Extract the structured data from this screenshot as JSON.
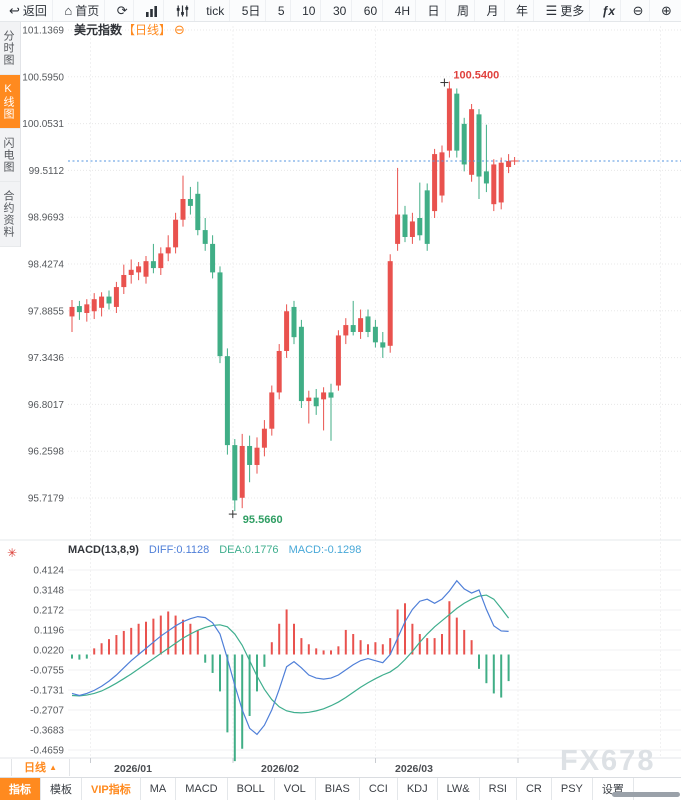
{
  "top_toolbar": [
    {
      "name": "back",
      "icon": "back",
      "label": "返回"
    },
    {
      "name": "home",
      "icon": "home",
      "label": "首页"
    },
    {
      "name": "refresh",
      "icon": "refresh",
      "label": ""
    },
    {
      "name": "chart-type",
      "icon": "bar-chart",
      "label": ""
    },
    {
      "name": "kline-style",
      "icon": "sliders",
      "label": ""
    },
    {
      "name": "period-tick",
      "label": "tick"
    },
    {
      "name": "period-5d",
      "label": "5日"
    },
    {
      "name": "period-5",
      "label": "5"
    },
    {
      "name": "period-10",
      "label": "10"
    },
    {
      "name": "period-30",
      "label": "30"
    },
    {
      "name": "period-60",
      "label": "60"
    },
    {
      "name": "period-4h",
      "label": "4H"
    },
    {
      "name": "period-day",
      "label": "日"
    },
    {
      "name": "period-week",
      "label": "周"
    },
    {
      "name": "period-month",
      "label": "月"
    },
    {
      "name": "period-year",
      "label": "年"
    },
    {
      "name": "more",
      "icon": "more",
      "label": "更多"
    },
    {
      "name": "formula",
      "label": "ƒx"
    },
    {
      "name": "zoom-out",
      "icon": "zoom-out",
      "label": ""
    },
    {
      "name": "zoom-in",
      "icon": "zoom-in",
      "label": ""
    }
  ],
  "sidebar": [
    {
      "name": "time-chart",
      "label": "分时图",
      "active": false
    },
    {
      "name": "kline-chart",
      "label": "K线图",
      "active": true
    },
    {
      "name": "lightning-chart",
      "label": "闪电图",
      "active": false
    },
    {
      "name": "contract-info",
      "label": "合约资料",
      "active": false
    }
  ],
  "title": {
    "symbol": "美元指数",
    "period": "【日线】",
    "collapse_icon": "⊖"
  },
  "macd_header": {
    "title": "MACD(13,8,9)",
    "diff": "DIFF:0.1128",
    "dea": "DEA:0.1776",
    "macd": "MACD:-0.1298"
  },
  "bottom_axis": {
    "period_label": "日线",
    "arrow": "▲"
  },
  "bottom_toolbar": [
    {
      "name": "indicator",
      "label": "指标",
      "style": "active"
    },
    {
      "name": "template",
      "label": "模板",
      "style": ""
    },
    {
      "name": "vip-indicator",
      "label": "VIP指标",
      "style": "vip"
    },
    {
      "name": "ma",
      "label": "MA",
      "style": ""
    },
    {
      "name": "macd",
      "label": "MACD",
      "style": ""
    },
    {
      "name": "boll",
      "label": "BOLL",
      "style": ""
    },
    {
      "name": "vol",
      "label": "VOL",
      "style": ""
    },
    {
      "name": "bias",
      "label": "BIAS",
      "style": ""
    },
    {
      "name": "cci",
      "label": "CCI",
      "style": ""
    },
    {
      "name": "kdj",
      "label": "KDJ",
      "style": ""
    },
    {
      "name": "lwr",
      "label": "LW&",
      "style": ""
    },
    {
      "name": "rsi",
      "label": "RSI",
      "style": ""
    },
    {
      "name": "cr",
      "label": "CR",
      "style": ""
    },
    {
      "name": "psy",
      "label": "PSY",
      "style": ""
    },
    {
      "name": "settings",
      "label": "设置",
      "style": ""
    }
  ],
  "watermark": "FX678",
  "chart_data": {
    "type": "candlestick",
    "title": "美元指数 日线",
    "y_axis": [
      "101.1369",
      "100.5950",
      "100.0531",
      "99.5112",
      "98.9693",
      "98.4274",
      "97.8855",
      "97.3436",
      "96.8017",
      "96.2598",
      "95.7179"
    ],
    "x_axis": [
      "2026/01",
      "2026/02",
      "2026/03"
    ],
    "current_price": 99.62,
    "high_marker": {
      "label": "100.5400",
      "value": 100.54
    },
    "low_marker": {
      "label": "95.5660",
      "value": 95.566
    },
    "colors": {
      "up": "#e9524e",
      "down": "#40ae86",
      "price_line": "#5596e0",
      "diff": "#4f7fd8",
      "dea": "#3fae8e"
    },
    "candles": [
      [
        97.82,
        98.01,
        97.64,
        97.93
      ],
      [
        97.94,
        98.0,
        97.78,
        97.87
      ],
      [
        97.86,
        98.02,
        97.76,
        97.96
      ],
      [
        97.88,
        98.09,
        97.79,
        98.02
      ],
      [
        97.92,
        98.1,
        97.82,
        98.05
      ],
      [
        98.05,
        98.12,
        97.9,
        97.97
      ],
      [
        97.93,
        98.22,
        97.86,
        98.16
      ],
      [
        98.16,
        98.42,
        98.08,
        98.3
      ],
      [
        98.3,
        98.48,
        98.2,
        98.36
      ],
      [
        98.33,
        98.45,
        98.24,
        98.4
      ],
      [
        98.28,
        98.52,
        98.2,
        98.46
      ],
      [
        98.46,
        98.66,
        98.32,
        98.38
      ],
      [
        98.38,
        98.62,
        98.3,
        98.55
      ],
      [
        98.55,
        98.76,
        98.46,
        98.62
      ],
      [
        98.62,
        99.02,
        98.55,
        98.94
      ],
      [
        98.94,
        99.45,
        98.86,
        99.18
      ],
      [
        99.18,
        99.32,
        99.0,
        99.1
      ],
      [
        99.24,
        99.38,
        98.76,
        98.82
      ],
      [
        98.82,
        98.96,
        98.58,
        98.66
      ],
      [
        98.66,
        98.76,
        98.26,
        98.33
      ],
      [
        98.33,
        98.4,
        97.28,
        97.36
      ],
      [
        97.36,
        97.45,
        96.22,
        96.33
      ],
      [
        96.33,
        96.4,
        95.566,
        95.69
      ],
      [
        95.72,
        96.46,
        95.6,
        96.32
      ],
      [
        96.32,
        96.44,
        95.9,
        96.1
      ],
      [
        96.1,
        96.42,
        96.0,
        96.3
      ],
      [
        96.3,
        96.62,
        96.2,
        96.52
      ],
      [
        96.52,
        97.02,
        96.44,
        96.94
      ],
      [
        96.94,
        97.5,
        96.86,
        97.42
      ],
      [
        97.42,
        97.96,
        97.34,
        97.88
      ],
      [
        97.93,
        98.0,
        97.5,
        97.58
      ],
      [
        97.7,
        97.78,
        96.76,
        96.84
      ],
      [
        96.84,
        96.96,
        96.58,
        96.88
      ],
      [
        96.88,
        96.98,
        96.68,
        96.78
      ],
      [
        96.86,
        97.0,
        96.5,
        96.94
      ],
      [
        96.94,
        97.04,
        96.38,
        96.88
      ],
      [
        97.02,
        97.66,
        96.96,
        97.6
      ],
      [
        97.6,
        97.8,
        97.5,
        97.72
      ],
      [
        97.72,
        98.0,
        97.6,
        97.64
      ],
      [
        97.64,
        97.9,
        97.56,
        97.8
      ],
      [
        97.82,
        97.9,
        97.58,
        97.64
      ],
      [
        97.7,
        97.78,
        97.46,
        97.52
      ],
      [
        97.52,
        97.64,
        97.34,
        97.46
      ],
      [
        97.48,
        98.54,
        97.4,
        98.46
      ],
      [
        98.66,
        99.54,
        98.58,
        99.0
      ],
      [
        99.0,
        99.1,
        98.68,
        98.74
      ],
      [
        98.74,
        99.02,
        98.66,
        98.92
      ],
      [
        98.96,
        99.37,
        98.7,
        98.76
      ],
      [
        99.28,
        99.36,
        98.58,
        98.66
      ],
      [
        99.04,
        99.76,
        98.96,
        99.7
      ],
      [
        99.22,
        99.8,
        99.14,
        99.72
      ],
      [
        99.74,
        100.54,
        99.66,
        100.46
      ],
      [
        100.4,
        100.46,
        99.66,
        99.74
      ],
      [
        100.05,
        100.12,
        99.5,
        99.58
      ],
      [
        99.46,
        100.28,
        99.38,
        100.22
      ],
      [
        100.16,
        100.22,
        99.18,
        99.44
      ],
      [
        99.5,
        100.04,
        99.26,
        99.36
      ],
      [
        99.12,
        99.64,
        99.04,
        99.58
      ],
      [
        99.14,
        99.66,
        99.06,
        99.6
      ],
      [
        99.55,
        99.7,
        99.48,
        99.62
      ]
    ],
    "macd": {
      "params": "13,8,9",
      "diff_value": 0.1128,
      "dea_value": 0.1776,
      "macd_value": -0.1298,
      "y_axis": [
        "0.4124",
        "0.3148",
        "0.2172",
        "0.1196",
        "0.0220",
        "-0.0755",
        "-0.1731",
        "-0.2707",
        "-0.3683",
        "-0.4659"
      ],
      "hist": [
        -0.02,
        -0.025,
        -0.02,
        0.03,
        0.055,
        0.075,
        0.095,
        0.115,
        0.13,
        0.15,
        0.16,
        0.175,
        0.19,
        0.21,
        0.19,
        0.17,
        0.15,
        0.12,
        -0.04,
        -0.09,
        -0.18,
        -0.38,
        -0.52,
        -0.46,
        -0.3,
        -0.18,
        -0.06,
        0.06,
        0.15,
        0.22,
        0.15,
        0.08,
        0.05,
        0.03,
        0.02,
        0.02,
        0.04,
        0.12,
        0.1,
        0.07,
        0.05,
        0.06,
        0.05,
        0.08,
        0.22,
        0.25,
        0.15,
        0.1,
        0.08,
        0.08,
        0.1,
        0.26,
        0.18,
        0.12,
        0.07,
        -0.07,
        -0.14,
        -0.19,
        -0.21,
        -0.1298
      ],
      "diff": [
        -0.19,
        -0.2,
        -0.19,
        -0.175,
        -0.155,
        -0.13,
        -0.1,
        -0.065,
        -0.03,
        0.0,
        0.03,
        0.06,
        0.09,
        0.115,
        0.14,
        0.16,
        0.175,
        0.185,
        0.18,
        0.155,
        0.1,
        -0.02,
        -0.15,
        -0.27,
        -0.36,
        -0.39,
        -0.345,
        -0.27,
        -0.17,
        -0.06,
        -0.035,
        -0.065,
        -0.1,
        -0.115,
        -0.12,
        -0.115,
        -0.1,
        -0.075,
        -0.05,
        -0.03,
        -0.02,
        -0.03,
        -0.04,
        0.0,
        0.08,
        0.16,
        0.22,
        0.26,
        0.27,
        0.25,
        0.27,
        0.31,
        0.36,
        0.32,
        0.3,
        0.315,
        0.22,
        0.14,
        0.115,
        0.1128
      ],
      "dea": [
        -0.2,
        -0.202,
        -0.198,
        -0.19,
        -0.178,
        -0.16,
        -0.14,
        -0.118,
        -0.095,
        -0.07,
        -0.045,
        -0.02,
        0.005,
        0.03,
        0.055,
        0.08,
        0.1,
        0.118,
        0.132,
        0.142,
        0.145,
        0.135,
        0.1,
        0.045,
        -0.03,
        -0.105,
        -0.17,
        -0.22,
        -0.255,
        -0.275,
        -0.283,
        -0.285,
        -0.282,
        -0.275,
        -0.265,
        -0.25,
        -0.232,
        -0.21,
        -0.185,
        -0.16,
        -0.138,
        -0.118,
        -0.1,
        -0.085,
        -0.06,
        -0.025,
        0.015,
        0.06,
        0.1,
        0.135,
        0.165,
        0.195,
        0.225,
        0.25,
        0.27,
        0.285,
        0.29,
        0.27,
        0.225,
        0.1776
      ]
    }
  }
}
